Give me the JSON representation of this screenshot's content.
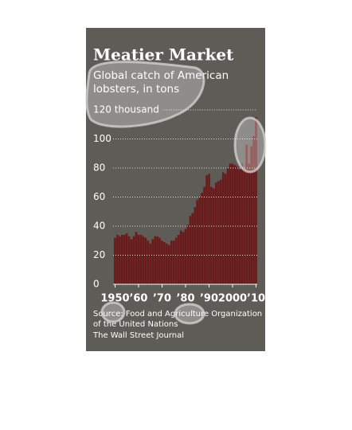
{
  "chart_data": {
    "type": "bar",
    "title": "Meatier Market",
    "subtitle": [
      "Global catch of American",
      "lobsters, in tons"
    ],
    "x": [
      1950,
      1951,
      1952,
      1953,
      1954,
      1955,
      1956,
      1957,
      1958,
      1959,
      1960,
      1961,
      1962,
      1963,
      1964,
      1965,
      1966,
      1967,
      1968,
      1969,
      1970,
      1971,
      1972,
      1973,
      1974,
      1975,
      1976,
      1977,
      1978,
      1979,
      1980,
      1981,
      1982,
      1983,
      1984,
      1985,
      1986,
      1987,
      1988,
      1989,
      1990,
      1991,
      1992,
      1993,
      1994,
      1995,
      1996,
      1997,
      1998,
      1999,
      2000,
      2001,
      2002,
      2003,
      2004,
      2005,
      2006,
      2007,
      2008,
      2009,
      2010
    ],
    "values": [
      32,
      34,
      33,
      34,
      34,
      35,
      33,
      31,
      33,
      36,
      34,
      34,
      33,
      32,
      30,
      28,
      31,
      33,
      33,
      32,
      30,
      29,
      28,
      27,
      30,
      30,
      32,
      34,
      37,
      36,
      38,
      41,
      47,
      49,
      53,
      58,
      60,
      63,
      67,
      75,
      76,
      67,
      66,
      70,
      71,
      72,
      77,
      76,
      80,
      83,
      83,
      82,
      81,
      79,
      83,
      80,
      96,
      83,
      95,
      102,
      115
    ],
    "color": "#6a1a1a",
    "xlim": [
      1949.5,
      2010.5
    ],
    "xticks": [
      {
        "value": 1950,
        "label": "1950"
      },
      {
        "value": 1960,
        "label": "’60"
      },
      {
        "value": 1970,
        "label": "’70"
      },
      {
        "value": 1980,
        "label": "’80"
      },
      {
        "value": 1990,
        "label": "’90"
      },
      {
        "value": 2000,
        "label": "2000"
      },
      {
        "value": 2010,
        "label": "’10"
      }
    ],
    "ylim": [
      0,
      120
    ],
    "yticks": [
      0,
      20,
      40,
      60,
      80,
      100,
      {
        "value": 120,
        "label": "120 thousand"
      }
    ],
    "grid": true,
    "source": [
      "Source: Food and Agriculture Organization",
      "of the United Nations",
      "The Wall Street Journal"
    ]
  }
}
